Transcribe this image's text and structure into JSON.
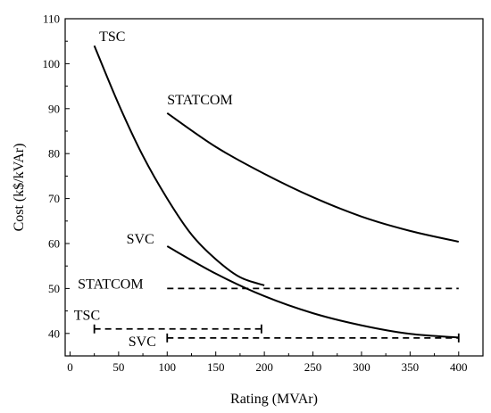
{
  "chart_data": {
    "type": "line",
    "title": "",
    "xlabel": "Rating (MVAr)",
    "ylabel": "Cost (k$/kVAr)",
    "xlim": [
      0,
      400
    ],
    "ylim": [
      35,
      110
    ],
    "x_ticks": [
      0,
      50,
      100,
      150,
      200,
      250,
      300,
      350,
      400
    ],
    "y_ticks": [
      40,
      50,
      60,
      70,
      80,
      90,
      100,
      110
    ],
    "grid": false,
    "series": [
      {
        "name": "TSC",
        "x": [
          25,
          50,
          75,
          100,
          125,
          150,
          175,
          200
        ],
        "y": [
          104,
          91,
          79.5,
          70,
          62,
          56.5,
          52.5,
          50.7
        ]
      },
      {
        "name": "STATCOM",
        "x": [
          100,
          150,
          200,
          250,
          300,
          350,
          400
        ],
        "y": [
          89,
          81.5,
          75.5,
          70.3,
          66,
          62.8,
          60.4
        ]
      },
      {
        "name": "SVC",
        "x": [
          100,
          150,
          200,
          250,
          300,
          350,
          400
        ],
        "y": [
          59.4,
          53.3,
          48.3,
          44.5,
          41.8,
          39.9,
          39.1
        ]
      }
    ],
    "ranges": [
      {
        "name": "STATCOM",
        "x": [
          100,
          400
        ],
        "y": 50
      },
      {
        "name": "TSC",
        "x": [
          25,
          197
        ],
        "y": 41
      },
      {
        "name": "SVC",
        "x": [
          100,
          400
        ],
        "y": 39
      }
    ],
    "annotations": [
      {
        "text": "TSC",
        "x": 30,
        "y": 105
      },
      {
        "text": "STATCOM",
        "x": 100,
        "y": 91
      },
      {
        "text": "SVC",
        "x": 58,
        "y": 60
      },
      {
        "text": "STATCOM",
        "x": 8,
        "y": 50
      },
      {
        "text": "TSC",
        "x": 4,
        "y": 43
      },
      {
        "text": "SVC",
        "x": 60,
        "y": 37.2
      }
    ]
  }
}
